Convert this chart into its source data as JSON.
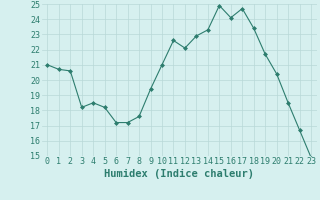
{
  "x": [
    0,
    1,
    2,
    3,
    4,
    5,
    6,
    7,
    8,
    9,
    10,
    11,
    12,
    13,
    14,
    15,
    16,
    17,
    18,
    19,
    20,
    21,
    22,
    23
  ],
  "y": [
    21.0,
    20.7,
    20.6,
    18.2,
    18.5,
    18.2,
    17.2,
    17.2,
    17.6,
    19.4,
    21.0,
    22.6,
    22.1,
    22.9,
    23.3,
    24.9,
    24.1,
    24.7,
    23.4,
    21.7,
    20.4,
    18.5,
    16.7,
    14.9
  ],
  "line_color": "#2d7d6e",
  "marker": "D",
  "marker_size": 2,
  "bg_color": "#d6f0ef",
  "grid_color": "#b8d8d8",
  "xlabel": "Humidex (Indice chaleur)",
  "ylim": [
    15,
    25
  ],
  "xlim": [
    -0.5,
    23.5
  ],
  "yticks": [
    15,
    16,
    17,
    18,
    19,
    20,
    21,
    22,
    23,
    24,
    25
  ],
  "xticks": [
    0,
    1,
    2,
    3,
    4,
    5,
    6,
    7,
    8,
    9,
    10,
    11,
    12,
    13,
    14,
    15,
    16,
    17,
    18,
    19,
    20,
    21,
    22,
    23
  ],
  "xlabel_color": "#2d7d6e",
  "tick_color": "#2d7d6e",
  "xlabel_fontsize": 7.5,
  "tick_fontsize": 6
}
